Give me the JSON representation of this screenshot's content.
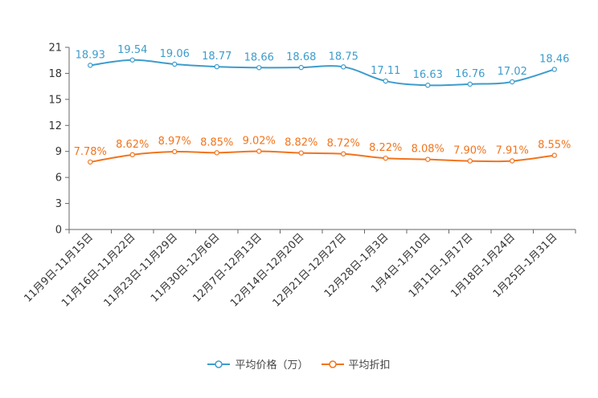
{
  "chart_data": {
    "type": "line",
    "title": "",
    "xlabel": "",
    "ylabel": "",
    "ylim": [
      0,
      21
    ],
    "yticks": [
      0,
      3,
      6,
      9,
      12,
      15,
      18,
      21
    ],
    "categories": [
      "11月9日-11月15日",
      "11月16日-11月22日",
      "11月23日-11月29日",
      "11月30日-12月6日",
      "12月7日-12月13日",
      "12月14日-12月20日",
      "12月21日-12月27日",
      "12月28日-1月3日",
      "1月4日-1月10日",
      "1月11日-1月17日",
      "1月18日-1月24日",
      "1月25日-1月31日"
    ],
    "series": [
      {
        "name": "平均价格（万）",
        "color": "#3d9ccc",
        "values": [
          18.93,
          19.54,
          19.06,
          18.77,
          18.66,
          18.68,
          18.75,
          17.11,
          16.63,
          16.76,
          17.02,
          18.46
        ],
        "labels": [
          "18.93",
          "19.54",
          "19.06",
          "18.77",
          "18.66",
          "18.68",
          "18.75",
          "17.11",
          "16.63",
          "16.76",
          "17.02",
          "18.46"
        ]
      },
      {
        "name": "平均折扣",
        "color": "#f2741d",
        "values": [
          7.78,
          8.62,
          8.97,
          8.85,
          9.02,
          8.82,
          8.72,
          8.22,
          8.08,
          7.9,
          7.91,
          8.55
        ],
        "labels": [
          "7.78%",
          "8.62%",
          "8.97%",
          "8.85%",
          "9.02%",
          "8.82%",
          "8.72%",
          "8.22%",
          "8.08%",
          "7.90%",
          "7.91%",
          "8.55%"
        ]
      }
    ],
    "legend": "bottom-center"
  }
}
